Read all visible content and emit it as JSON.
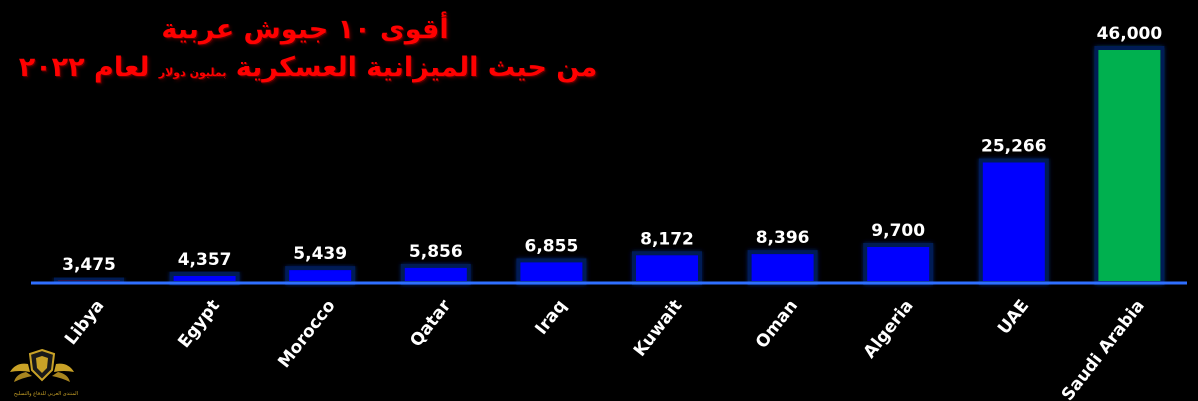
{
  "title": {
    "line1": "أقوى ١٠ جيوش عربية",
    "line2_main": "من حيث الميزانية العسكرية",
    "line2_unit": "بمليون دولار",
    "line2_year": "لعام ٢٠٢٢"
  },
  "colors": {
    "background": "#000000",
    "default_bar": "#0000ff",
    "highlight_min": "#ff0000",
    "highlight_max": "#00b050",
    "baseline": "#2f6fff"
  },
  "chart_data": {
    "type": "bar",
    "categories": [
      "Libya",
      "Egypt",
      "Morocco",
      "Qatar",
      "Iraq",
      "Kuwait",
      "Oman",
      "Algeria",
      "UAE",
      "Saudi Arabia"
    ],
    "values": [
      3475,
      4357,
      5439,
      5856,
      6855,
      8172,
      8396,
      9700,
      25266,
      46000
    ],
    "value_labels": [
      "3,475",
      "4,357",
      "5,439",
      "5,856",
      "6,855",
      "8,172",
      "8,396",
      "9,700",
      "25,266",
      "46,000"
    ],
    "bar_colors": [
      "#ff0000",
      "#0000ff",
      "#0000ff",
      "#0000ff",
      "#0000ff",
      "#0000ff",
      "#0000ff",
      "#0000ff",
      "#0000ff",
      "#00b050"
    ],
    "ylim": [
      2700,
      46000
    ],
    "grid": false,
    "legend": "none"
  },
  "logo": {
    "icon": "shield-wings-icon",
    "text": "المنتدى العربي للدفاع والتسليح"
  }
}
